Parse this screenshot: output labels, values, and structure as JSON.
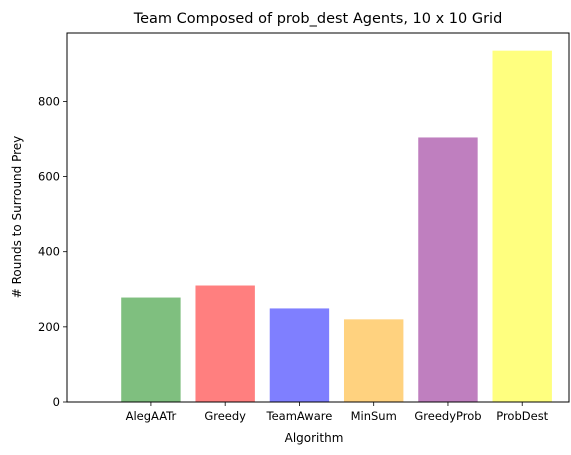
{
  "chart_data": {
    "type": "bar",
    "title": "Team Composed of prob_dest Agents, 10 x 10 Grid",
    "xlabel": "Algorithm",
    "ylabel": "# Rounds to Surround Prey",
    "categories": [
      "AlegAATr",
      "Greedy",
      "TeamAware",
      "MinSum",
      "GreedyProb",
      "ProbDest"
    ],
    "values": [
      278,
      310,
      249,
      220,
      704,
      935
    ],
    "colors": [
      "#008000",
      "#ff0000",
      "#0000ff",
      "#ffa500",
      "#800080",
      "#ffff00"
    ],
    "bar_opacity": 0.5,
    "ylim": [
      0,
      982
    ],
    "yticks": [
      0,
      200,
      400,
      600,
      800
    ],
    "grid": false,
    "legend": "none"
  }
}
